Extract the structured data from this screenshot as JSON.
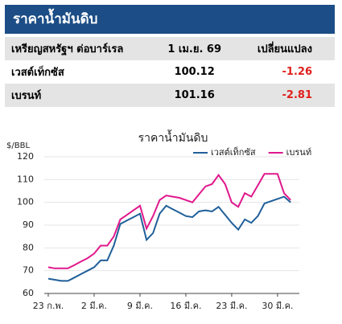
{
  "header": {
    "title": "ราคาน้ำมันดิบ"
  },
  "table": {
    "columns": [
      "เหรียญสหรัฐฯ ต่อบาร์เรล",
      "1 เม.ย. 69",
      "เปลี่ยนแปลง"
    ],
    "rows": [
      [
        "เวสต์เท็กซัส",
        "100.12",
        "-1.26"
      ],
      [
        "เบรนท์",
        "101.16",
        "-2.81"
      ]
    ]
  },
  "chart_data": {
    "type": "line",
    "title": "ราคาน้ำมันดิบ",
    "y_label": "$/BBL",
    "categories": [
      "23 ก.พ.",
      null,
      null,
      null,
      null,
      null,
      null,
      "2 มี.ค.",
      null,
      null,
      null,
      null,
      null,
      null,
      "9 มี.ค.",
      null,
      null,
      null,
      null,
      null,
      null,
      "16 มี.ค.",
      null,
      null,
      null,
      null,
      null,
      null,
      "23 มี.ค.",
      null,
      null,
      null,
      null,
      null,
      null,
      "30 มี.ค.",
      null,
      null
    ],
    "series": [
      {
        "name": "เวสต์เท็กซัส",
        "color": "#1f5f99",
        "values": [
          66.5,
          66,
          65.5,
          65.5,
          67,
          68.5,
          70,
          71.5,
          74.5,
          74.5,
          81,
          90.5,
          92,
          93.5,
          95,
          83.5,
          86.5,
          95,
          98.5,
          97,
          95.5,
          94,
          93.5,
          96,
          96.5,
          96,
          98,
          94.5,
          91,
          88,
          92.5,
          91,
          94,
          99.5,
          100.5,
          101.5,
          102.5,
          100
        ]
      },
      {
        "name": "เบรนท์",
        "color": "#e0188c",
        "values": [
          71.5,
          71,
          71,
          71,
          72.5,
          74,
          75.5,
          77.5,
          81,
          81,
          85,
          92.5,
          94.5,
          96.5,
          98.5,
          88.5,
          94,
          101,
          103,
          102.5,
          102,
          101,
          100,
          103.5,
          107,
          108,
          112,
          108,
          100,
          98,
          104,
          102.5,
          107.5,
          112.5,
          112.5,
          112.5,
          104,
          101
        ]
      }
    ],
    "ylim": [
      60,
      120
    ],
    "yticks": [
      60,
      70,
      80,
      90,
      100,
      110,
      120
    ],
    "grid": true,
    "legend": "top-right"
  }
}
